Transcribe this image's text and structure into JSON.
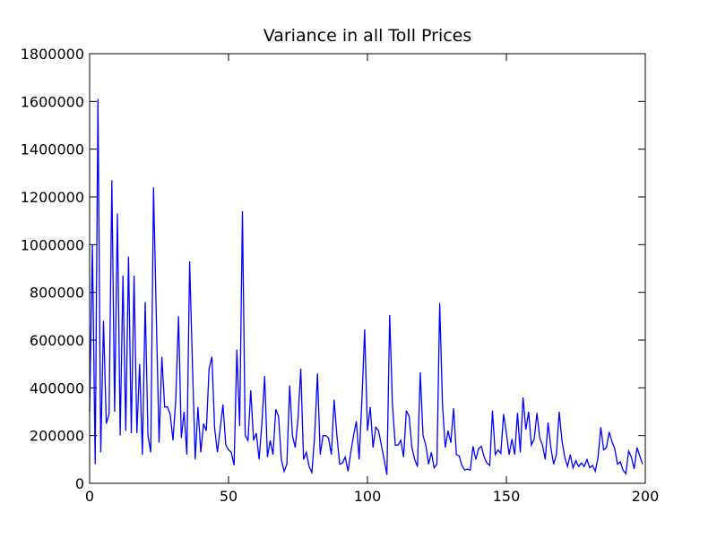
{
  "chart_data": {
    "type": "line",
    "title": "Variance in all Toll Prices",
    "x": [
      0,
      1,
      2,
      3,
      4,
      5,
      6,
      7,
      8,
      9,
      10,
      11,
      12,
      13,
      14,
      15,
      16,
      17,
      18,
      19,
      20,
      21,
      22,
      23,
      24,
      25,
      26,
      27,
      28,
      29,
      30,
      31,
      32,
      33,
      34,
      35,
      36,
      37,
      38,
      39,
      40,
      41,
      42,
      43,
      44,
      45,
      46,
      47,
      48,
      49,
      50,
      51,
      52,
      53,
      54,
      55,
      56,
      57,
      58,
      59,
      60,
      61,
      62,
      63,
      64,
      65,
      66,
      67,
      68,
      69,
      70,
      71,
      72,
      73,
      74,
      75,
      76,
      77,
      78,
      79,
      80,
      81,
      82,
      83,
      84,
      85,
      86,
      87,
      88,
      89,
      90,
      91,
      92,
      93,
      94,
      95,
      96,
      97,
      98,
      99,
      100,
      101,
      102,
      103,
      104,
      105,
      106,
      107,
      108,
      109,
      110,
      111,
      112,
      113,
      114,
      115,
      116,
      117,
      118,
      119,
      120,
      121,
      122,
      123,
      124,
      125,
      126,
      127,
      128,
      129,
      130,
      131,
      132,
      133,
      134,
      135,
      136,
      137,
      138,
      139,
      140,
      141,
      142,
      143,
      144,
      145,
      146,
      147,
      148,
      149,
      150,
      151,
      152,
      153,
      154,
      155,
      156,
      157,
      158,
      159,
      160,
      161,
      162,
      163,
      164,
      165,
      166,
      167,
      168,
      169,
      170,
      171,
      172,
      173,
      174,
      175,
      176,
      177,
      178,
      179,
      180,
      181,
      182,
      183,
      184,
      185,
      186,
      187,
      188,
      189,
      190,
      191,
      192,
      193,
      194,
      195,
      196,
      197,
      198,
      199
    ],
    "series": [
      {
        "color": "#0000ff",
        "values": [
          300000,
          1000000,
          80000,
          1610000,
          130000,
          680000,
          250000,
          290000,
          1270000,
          300000,
          1130000,
          200000,
          870000,
          220000,
          950000,
          210000,
          870000,
          210000,
          500000,
          120000,
          760000,
          200000,
          130000,
          1240000,
          700000,
          170000,
          530000,
          320000,
          320000,
          290000,
          180000,
          350000,
          700000,
          190000,
          300000,
          120000,
          930000,
          500000,
          100000,
          320000,
          130000,
          250000,
          220000,
          480000,
          530000,
          230000,
          130000,
          230000,
          330000,
          160000,
          140000,
          130000,
          75000,
          560000,
          240000,
          1140000,
          200000,
          180000,
          390000,
          180000,
          210000,
          100000,
          250000,
          450000,
          110000,
          180000,
          120000,
          310000,
          280000,
          100000,
          50000,
          80000,
          410000,
          200000,
          150000,
          270000,
          480000,
          100000,
          130000,
          70000,
          45000,
          200000,
          460000,
          120000,
          200000,
          200000,
          190000,
          120000,
          350000,
          200000,
          80000,
          85000,
          110000,
          50000,
          130000,
          200000,
          260000,
          100000,
          350000,
          645000,
          220000,
          320000,
          150000,
          235000,
          220000,
          160000,
          100000,
          35000,
          705000,
          330000,
          160000,
          160000,
          180000,
          110000,
          305000,
          280000,
          150000,
          100000,
          70000,
          465000,
          200000,
          160000,
          80000,
          130000,
          65000,
          80000,
          755000,
          330000,
          150000,
          220000,
          170000,
          315000,
          120000,
          115000,
          75000,
          55000,
          60000,
          55000,
          155000,
          100000,
          145000,
          155000,
          110000,
          85000,
          75000,
          305000,
          120000,
          140000,
          125000,
          290000,
          210000,
          120000,
          185000,
          120000,
          295000,
          130000,
          360000,
          225000,
          300000,
          160000,
          185000,
          295000,
          190000,
          160000,
          100000,
          255000,
          150000,
          80000,
          120000,
          300000,
          180000,
          110000,
          70000,
          120000,
          65000,
          95000,
          70000,
          85000,
          70000,
          100000,
          65000,
          75000,
          50000,
          110000,
          235000,
          140000,
          150000,
          215000,
          175000,
          145000,
          80000,
          90000,
          55000,
          40000,
          135000,
          110000,
          60000,
          150000,
          115000,
          80000
        ]
      }
    ],
    "xlim": [
      0,
      200
    ],
    "xticks": [
      0,
      50,
      100,
      150,
      200
    ],
    "ylim": [
      0,
      1800000
    ],
    "yticks": [
      0,
      200000,
      400000,
      600000,
      800000,
      1000000,
      1200000,
      1400000,
      1600000,
      1800000
    ]
  }
}
